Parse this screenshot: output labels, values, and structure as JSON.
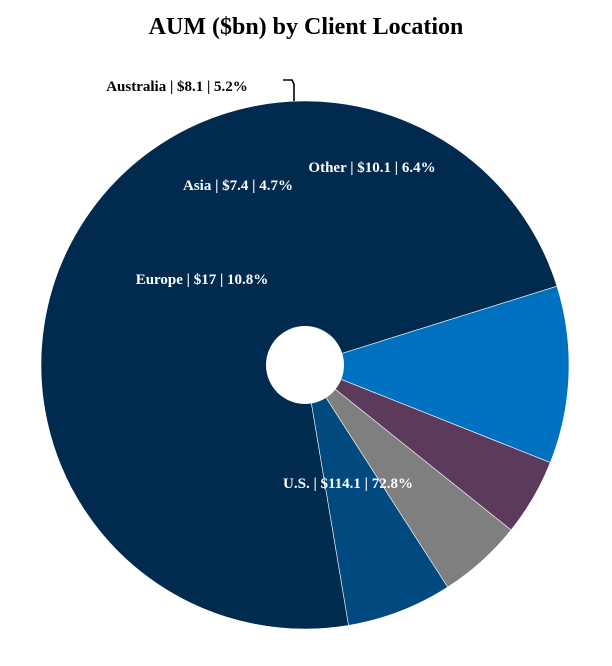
{
  "chart_data": {
    "type": "pie",
    "title": "AUM ($bn) by Client Location",
    "donut": true,
    "slices": [
      {
        "label": "U.S. | $114.1 | 72.8%",
        "value": 114.1,
        "percent": 72.8,
        "color": "#002a4e",
        "label_color": "#ffffff"
      },
      {
        "label": "Europe | $17 | 10.8%",
        "value": 17,
        "percent": 10.8,
        "color": "#0070c0",
        "label_color": "#ffffff"
      },
      {
        "label": "Asia | $7.4 | 4.7%",
        "value": 7.4,
        "percent": 4.7,
        "color": "#5c3a5c",
        "label_color": "#ffffff"
      },
      {
        "label": "Australia | $8.1 | 5.2%",
        "value": 8.1,
        "percent": 5.2,
        "color": "#7f7f80",
        "label_color": "#000000"
      },
      {
        "label": "Other | $10.1 | 6.4%",
        "value": 10.1,
        "percent": 6.4,
        "color": "#004a80",
        "label_color": "#ffffff"
      }
    ]
  }
}
